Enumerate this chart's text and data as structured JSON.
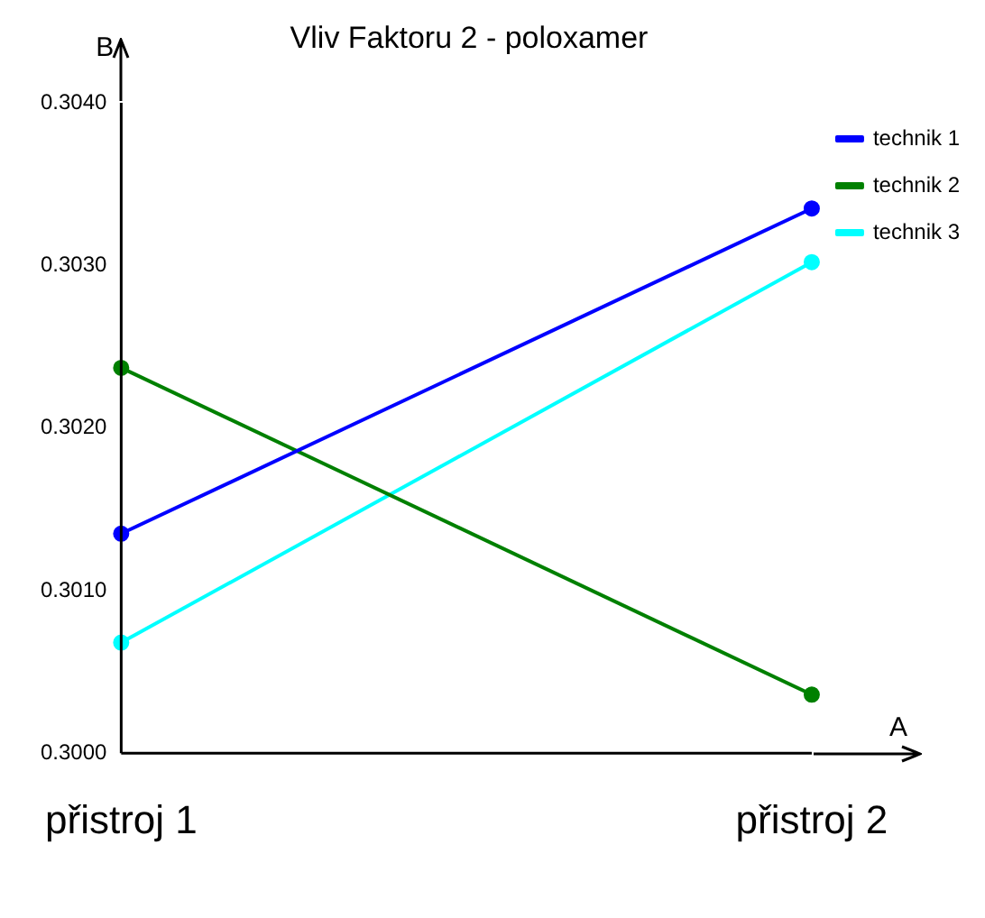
{
  "chart_data": {
    "type": "line",
    "title": "Vliv Faktoru 2 - poloxamer",
    "xlabel": "A",
    "ylabel": "B",
    "categories": [
      "přistroj 1",
      "přistroj 2"
    ],
    "series": [
      {
        "name": "technik 1",
        "color": "#0000ff",
        "values": [
          0.30135,
          0.30335
        ]
      },
      {
        "name": "technik 2",
        "color": "#008000",
        "values": [
          0.30237,
          0.30036
        ]
      },
      {
        "name": "technik 3",
        "color": "#00ffff",
        "values": [
          0.30068,
          0.30302
        ]
      }
    ],
    "ylim": [
      0.3,
      0.304
    ],
    "yticks": [
      {
        "value": 0.3,
        "label": "0.3000"
      },
      {
        "value": 0.301,
        "label": "0.3010"
      },
      {
        "value": 0.302,
        "label": "0.3020"
      },
      {
        "value": 0.303,
        "label": "0.3030"
      },
      {
        "value": 0.304,
        "label": "0.3040"
      }
    ],
    "grid": false,
    "legend": "top right",
    "marker": "circle",
    "line_style": "solid"
  }
}
